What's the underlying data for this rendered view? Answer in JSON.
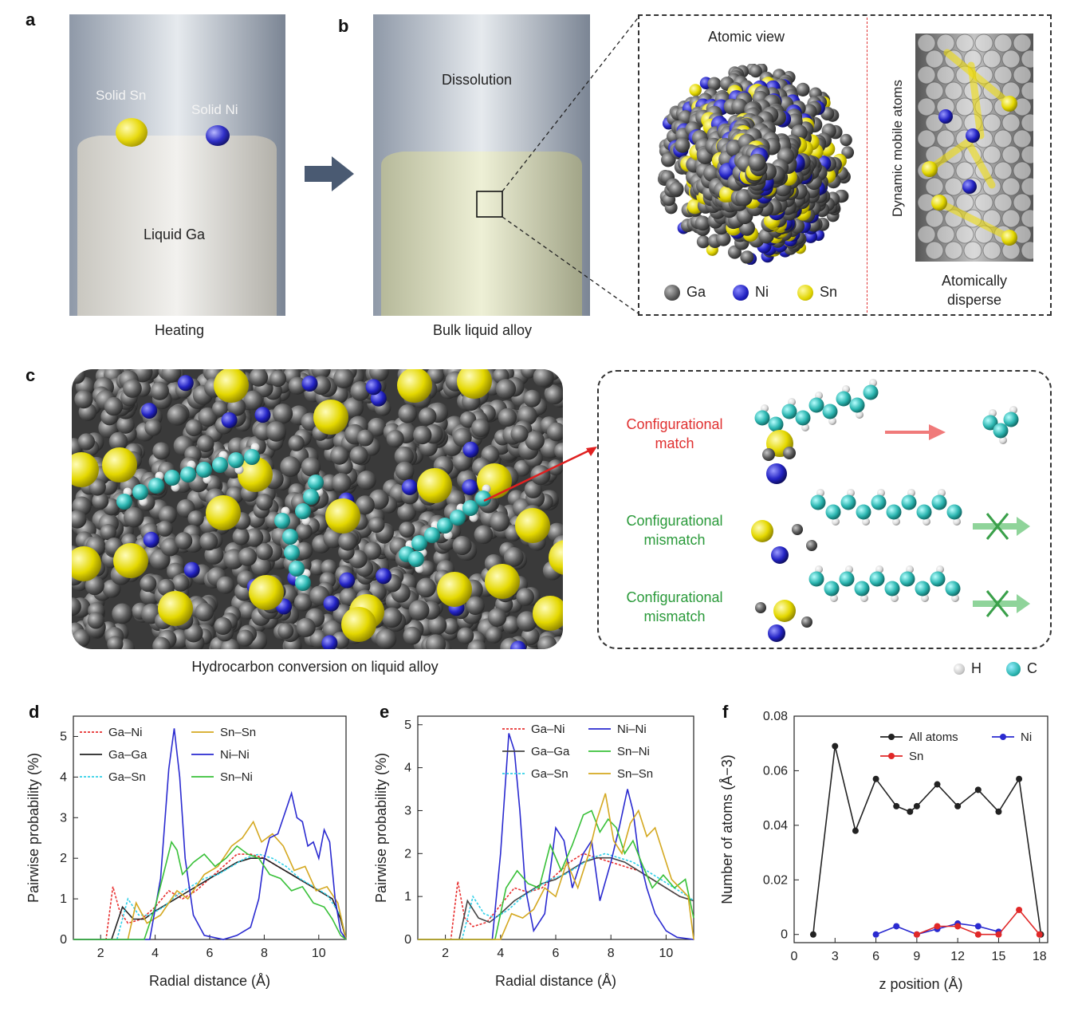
{
  "panels": {
    "a": {
      "label": "a",
      "solid_sn": "Solid Sn",
      "solid_ni": "Solid Ni",
      "liquid_ga": "Liquid Ga",
      "caption": "Heating"
    },
    "b": {
      "label": "b",
      "dissolution": "Dissolution",
      "caption": "Bulk liquid alloy",
      "atomic_view": "Atomic view",
      "dynamic": "Dynamic mobile atoms",
      "atomically_disperse": "Atomically disperse",
      "legend": [
        "Ga",
        "Ni",
        "Sn"
      ]
    },
    "c": {
      "label": "c",
      "caption": "Hydrocarbon conversion on liquid alloy",
      "match": "Configurational match",
      "mismatch1": "Configurational mismatch",
      "mismatch2": "Configurational mismatch",
      "legend": [
        "H",
        "C"
      ]
    },
    "d": {
      "label": "d"
    },
    "e": {
      "label": "e"
    },
    "f": {
      "label": "f"
    }
  },
  "colors": {
    "ga": "#555555",
    "ni": "#1f2bb8",
    "sn": "#e8e000",
    "c": "#2bb5b0",
    "h": "#f4f4f4",
    "match": "#e03030",
    "mismatch": "#2a9a3a"
  },
  "chart_data": [
    {
      "id": "d",
      "type": "line",
      "xlabel": "Radial distance (Å)",
      "ylabel": "Pairwise probability (%)",
      "xlim": [
        1,
        11
      ],
      "ylim": [
        0,
        5.5
      ],
      "xticks": [
        2,
        4,
        6,
        8,
        10
      ],
      "yticks": [
        0,
        1,
        2,
        3,
        4,
        5
      ],
      "legend": [
        "Ga–Ni",
        "Ga–Ga",
        "Ga–Sn",
        "Sn–Sn",
        "Ni–Ni",
        "Sn–Ni"
      ],
      "series": [
        {
          "name": "Ga–Ni",
          "color": "#e83030",
          "dash": true,
          "x": [
            1,
            2.2,
            2.45,
            2.7,
            3.0,
            3.5,
            4.0,
            4.5,
            5.0,
            5.5,
            6.0,
            6.5,
            7.0,
            7.5,
            8.0,
            8.5,
            9.0,
            9.5,
            10.0,
            10.5,
            10.8,
            11
          ],
          "y": [
            0,
            0,
            1.3,
            0.7,
            0.4,
            0.5,
            0.8,
            1.2,
            1.0,
            1.2,
            1.5,
            1.8,
            2.1,
            2.1,
            2.0,
            1.8,
            1.6,
            1.4,
            1.2,
            1.0,
            0.5,
            0
          ]
        },
        {
          "name": "Ga–Ga",
          "color": "#222222",
          "x": [
            1,
            2.4,
            2.8,
            3.2,
            3.6,
            4.0,
            4.5,
            5.0,
            5.5,
            6.0,
            6.5,
            7.0,
            7.5,
            8.0,
            8.5,
            9.0,
            9.5,
            10.0,
            10.5,
            10.8,
            11
          ],
          "y": [
            0,
            0,
            0.8,
            0.5,
            0.5,
            0.7,
            0.9,
            1.1,
            1.3,
            1.5,
            1.7,
            1.9,
            2.0,
            2.0,
            1.8,
            1.6,
            1.4,
            1.2,
            1.0,
            0.5,
            0
          ]
        },
        {
          "name": "Ga–Sn",
          "color": "#30d0e8",
          "dash": true,
          "x": [
            1,
            2.6,
            3.0,
            3.4,
            3.8,
            4.3,
            4.8,
            5.3,
            5.8,
            6.3,
            6.8,
            7.3,
            7.8,
            8.3,
            8.8,
            9.3,
            9.8,
            10.3,
            10.8,
            11
          ],
          "y": [
            0,
            0,
            1.0,
            0.6,
            0.6,
            0.8,
            1.1,
            1.3,
            1.5,
            1.6,
            1.8,
            2.0,
            2.1,
            2.0,
            1.8,
            1.5,
            1.3,
            1.1,
            0.6,
            0
          ]
        },
        {
          "name": "Sn–Sn",
          "color": "#d4a820",
          "x": [
            1,
            3.0,
            3.3,
            3.7,
            4.2,
            4.8,
            5.2,
            5.8,
            6.3,
            6.8,
            7.2,
            7.6,
            7.9,
            8.3,
            8.7,
            9.1,
            9.5,
            9.9,
            10.3,
            10.7,
            11
          ],
          "y": [
            0,
            0,
            0.9,
            0.4,
            0.6,
            1.2,
            1.0,
            1.6,
            1.8,
            2.3,
            2.5,
            2.9,
            2.4,
            2.6,
            2.3,
            1.7,
            1.8,
            1.2,
            1.3,
            0.9,
            0
          ]
        },
        {
          "name": "Ni–Ni",
          "color": "#2a2ad0",
          "x": [
            1,
            3.8,
            4.2,
            4.5,
            4.7,
            4.9,
            5.1,
            5.4,
            5.8,
            6.5,
            7.0,
            7.5,
            7.8,
            8.0,
            8.2,
            8.5,
            8.8,
            9.0,
            9.2,
            9.4,
            9.6,
            9.8,
            10.0,
            10.2,
            10.4,
            10.6,
            10.8,
            11
          ],
          "y": [
            0,
            0,
            1.5,
            4.2,
            5.2,
            4.0,
            2.0,
            0.6,
            0.1,
            0,
            0.1,
            0.3,
            1.0,
            2.0,
            2.5,
            2.6,
            3.2,
            3.6,
            3.0,
            2.9,
            2.3,
            2.4,
            2.0,
            2.7,
            2.4,
            1.0,
            0.2,
            0
          ]
        },
        {
          "name": "Sn–Ni",
          "color": "#38c038",
          "x": [
            1,
            3.6,
            4.0,
            4.3,
            4.6,
            4.8,
            5.0,
            5.4,
            5.8,
            6.2,
            6.6,
            7.0,
            7.4,
            7.8,
            8.2,
            8.6,
            9.0,
            9.4,
            9.8,
            10.2,
            10.5,
            10.8,
            11
          ],
          "y": [
            0,
            0,
            0.8,
            1.6,
            2.4,
            2.2,
            1.6,
            1.9,
            2.1,
            1.8,
            2.0,
            2.3,
            2.1,
            2.0,
            1.6,
            1.5,
            1.2,
            1.3,
            0.9,
            0.8,
            0.5,
            0.1,
            0
          ]
        }
      ]
    },
    {
      "id": "e",
      "type": "line",
      "xlabel": "Radial distance (Å)",
      "ylabel": "Pairwise probability (%)",
      "xlim": [
        1,
        11
      ],
      "ylim": [
        0,
        5.2
      ],
      "xticks": [
        2,
        4,
        6,
        8,
        10
      ],
      "yticks": [
        0,
        1,
        2,
        3,
        4,
        5
      ],
      "legend": [
        "Ga–Ni",
        "Ga–Ga",
        "Ga–Sn",
        "Ni–Ni",
        "Sn–Ni",
        "Sn–Sn"
      ],
      "series": [
        {
          "name": "Ga–Ni",
          "color": "#e83030",
          "dash": true,
          "x": [
            1,
            2.2,
            2.45,
            2.7,
            3.0,
            3.5,
            4.0,
            4.5,
            5.0,
            5.5,
            6.0,
            6.5,
            7.0,
            7.5,
            8.0,
            8.5,
            9.0,
            9.5,
            10.0,
            10.5,
            11
          ],
          "y": [
            0,
            0,
            1.35,
            0.5,
            0.3,
            0.4,
            0.8,
            1.2,
            1.1,
            1.2,
            1.5,
            1.8,
            2.0,
            1.9,
            1.8,
            1.7,
            1.6,
            1.4,
            1.2,
            1.0,
            0.9
          ]
        },
        {
          "name": "Ga–Ga",
          "color": "#444444",
          "x": [
            1,
            2.5,
            2.8,
            3.2,
            3.6,
            4.0,
            4.5,
            5.0,
            5.5,
            6.0,
            6.5,
            7.0,
            7.5,
            8.0,
            8.5,
            9.0,
            9.5,
            10.0,
            10.5,
            11
          ],
          "y": [
            0,
            0,
            0.9,
            0.5,
            0.4,
            0.6,
            0.9,
            1.1,
            1.3,
            1.4,
            1.6,
            1.8,
            1.9,
            1.9,
            1.8,
            1.6,
            1.4,
            1.2,
            1.0,
            0.9
          ]
        },
        {
          "name": "Ga–Sn",
          "color": "#30d0e8",
          "dash": true,
          "x": [
            1,
            2.6,
            3.0,
            3.4,
            3.8,
            4.3,
            4.8,
            5.3,
            5.8,
            6.3,
            6.8,
            7.3,
            7.8,
            8.3,
            8.8,
            9.3,
            9.8,
            10.3,
            10.8,
            11
          ],
          "y": [
            0,
            0,
            1.0,
            0.6,
            0.5,
            0.7,
            1.0,
            1.2,
            1.4,
            1.5,
            1.7,
            1.9,
            2.0,
            1.9,
            1.8,
            1.6,
            1.4,
            1.2,
            1.0,
            0.9
          ]
        },
        {
          "name": "Ni–Ni",
          "color": "#2a2ad0",
          "x": [
            1,
            3.7,
            4.0,
            4.3,
            4.5,
            4.7,
            4.9,
            5.2,
            5.6,
            6.0,
            6.3,
            6.6,
            7.0,
            7.3,
            7.6,
            8.0,
            8.3,
            8.6,
            8.8,
            9.0,
            9.3,
            9.6,
            10.0,
            10.4,
            11
          ],
          "y": [
            0,
            0,
            2.0,
            4.8,
            4.4,
            3.0,
            1.2,
            0.2,
            0.6,
            2.6,
            2.3,
            1.2,
            2.0,
            2.3,
            0.9,
            1.8,
            2.6,
            3.5,
            3.0,
            2.0,
            1.2,
            0.6,
            0.2,
            0.05,
            0
          ]
        },
        {
          "name": "Sn–Ni",
          "color": "#38c038",
          "x": [
            1,
            3.8,
            4.2,
            4.6,
            5.0,
            5.4,
            5.8,
            6.2,
            6.6,
            7.0,
            7.3,
            7.6,
            7.9,
            8.2,
            8.5,
            8.8,
            9.1,
            9.5,
            9.9,
            10.3,
            10.7,
            11
          ],
          "y": [
            0,
            0,
            1.2,
            1.6,
            1.3,
            1.2,
            2.2,
            1.6,
            2.2,
            2.9,
            3.0,
            2.5,
            2.8,
            2.6,
            2.0,
            2.3,
            1.8,
            1.2,
            1.5,
            1.2,
            1.4,
            0.5
          ]
        },
        {
          "name": "Sn–Sn",
          "color": "#d4a820",
          "x": [
            1,
            4.0,
            4.4,
            4.8,
            5.2,
            5.6,
            6.0,
            6.4,
            6.8,
            7.2,
            7.5,
            7.8,
            8.1,
            8.4,
            8.7,
            9.0,
            9.3,
            9.6,
            9.9,
            10.2,
            10.5,
            10.8,
            11
          ],
          "y": [
            0,
            0,
            0.6,
            0.5,
            0.7,
            1.2,
            1.0,
            1.8,
            1.2,
            2.0,
            2.8,
            3.4,
            2.3,
            2.0,
            2.7,
            3.0,
            2.4,
            2.6,
            2.0,
            1.4,
            1.2,
            1.0,
            0
          ]
        }
      ]
    },
    {
      "id": "f",
      "type": "line",
      "xlabel": "z position (Å)",
      "ylabel": "Number of atoms (Å−3)",
      "xlim": [
        0,
        18.6
      ],
      "ylim": [
        -0.003,
        0.08
      ],
      "xticks": [
        0,
        3,
        6,
        9,
        12,
        15,
        18
      ],
      "yticks": [
        0,
        0.02,
        0.04,
        0.06,
        0.08
      ],
      "legend": [
        "All atoms",
        "Ni",
        "Sn"
      ],
      "series": [
        {
          "name": "All atoms",
          "color": "#222222",
          "x": [
            1.4,
            1.5,
            3.0,
            4.5,
            6.0,
            7.5,
            8.5,
            9.0,
            10.5,
            12.0,
            13.5,
            15.0,
            16.5,
            18.0,
            18.1
          ],
          "y": [
            0,
            0.005,
            0.069,
            0.038,
            0.057,
            0.047,
            0.045,
            0.047,
            0.055,
            0.047,
            0.053,
            0.045,
            0.057,
            0.004,
            0.0
          ]
        },
        {
          "name": "Ni",
          "color": "#2a2ad0",
          "x": [
            6.0,
            7.5,
            9.0,
            10.5,
            12.0,
            13.5,
            15.0
          ],
          "y": [
            0,
            0.003,
            0,
            0.002,
            0.004,
            0.003,
            0.001
          ]
        },
        {
          "name": "Sn",
          "color": "#e02828",
          "x": [
            9.0,
            10.5,
            12.0,
            13.5,
            15.0,
            16.5,
            18.0
          ],
          "y": [
            0,
            0.003,
            0.003,
            0,
            0,
            0.009,
            0
          ]
        }
      ]
    }
  ]
}
